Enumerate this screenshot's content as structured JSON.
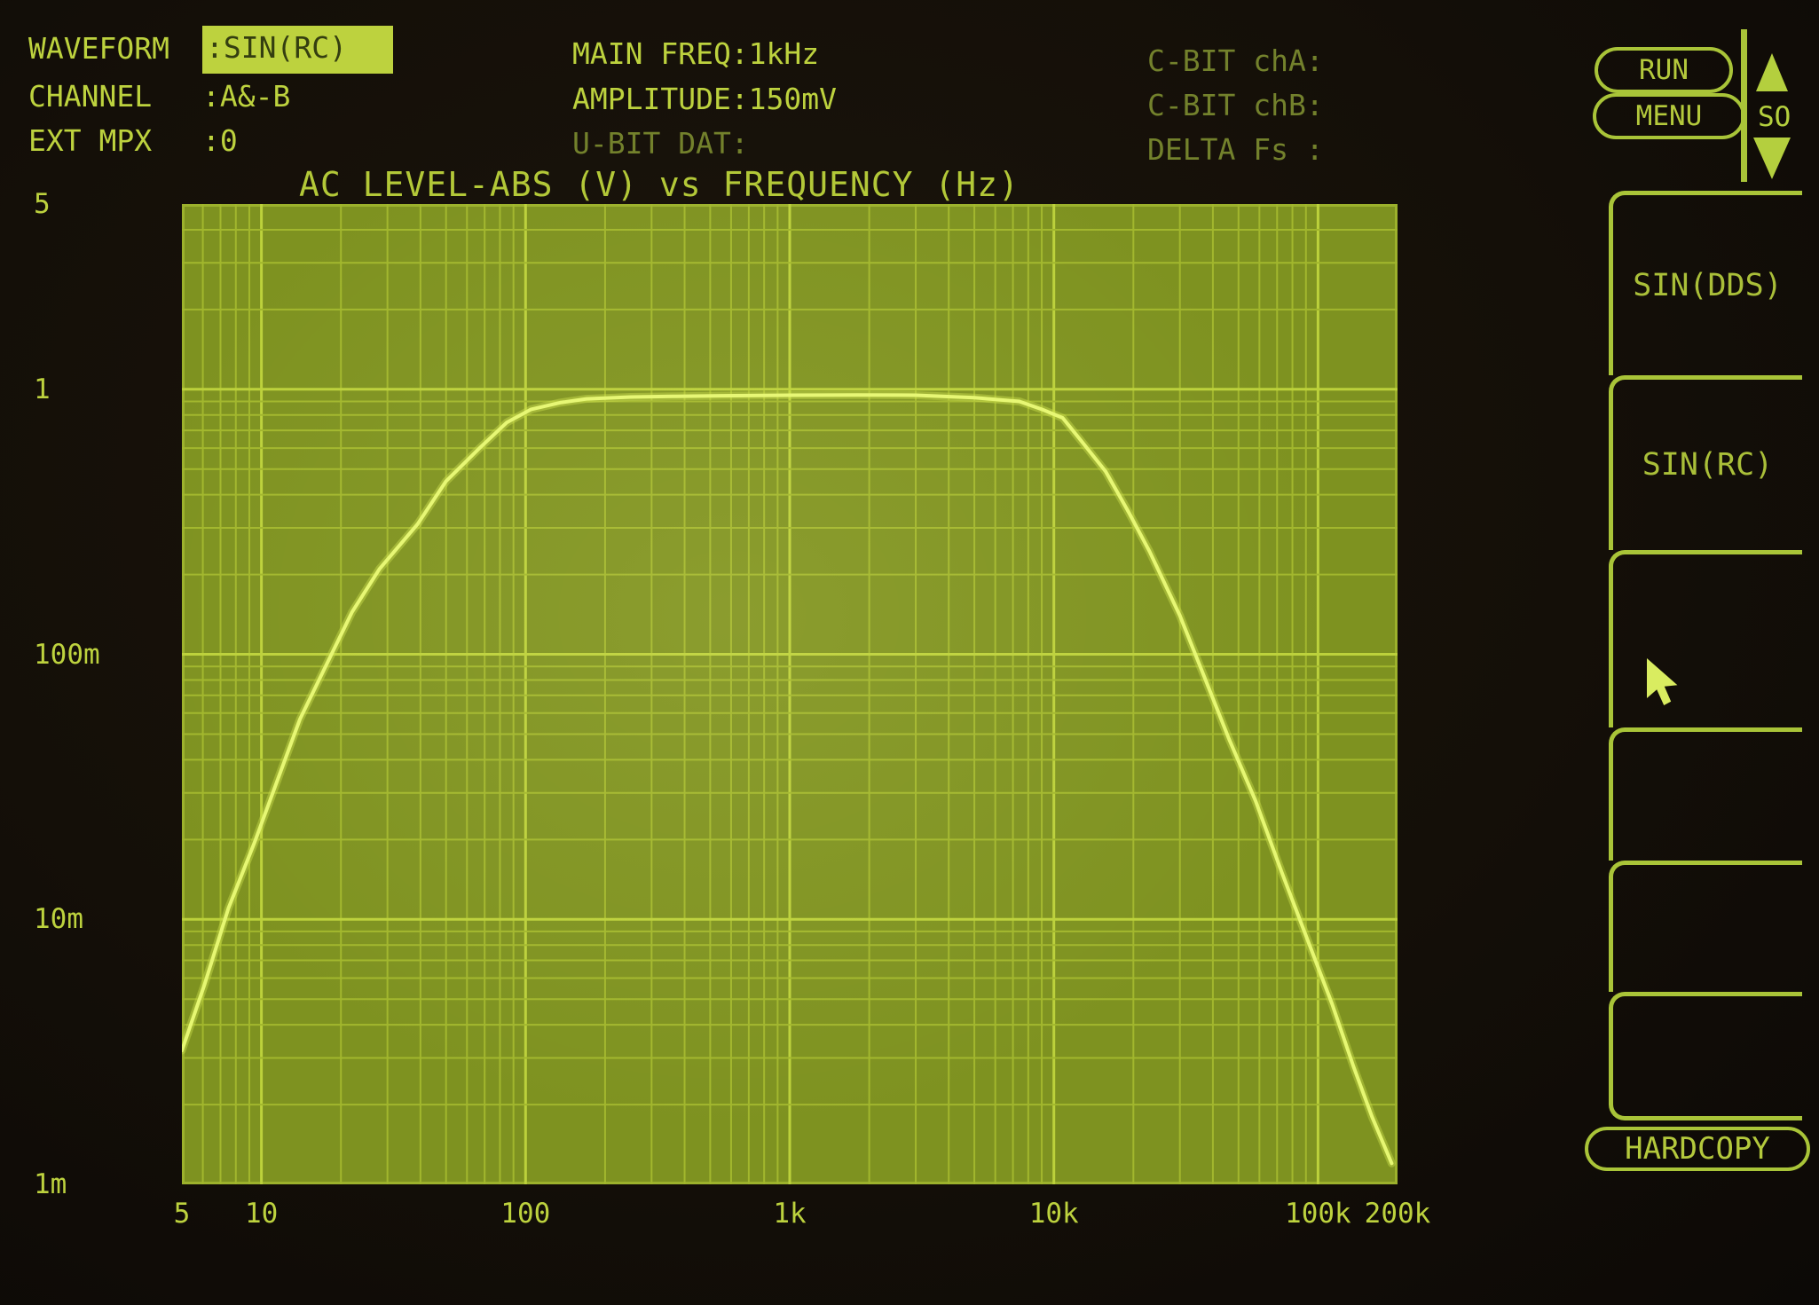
{
  "colors": {
    "screen_bg": "#120d07",
    "text_bright": "#bdd23e",
    "text_dim": "#73812c",
    "plot_fill": "#7e9220",
    "grid_minor": "#a2b72d",
    "grid_major": "#bcd13b",
    "trace": "#e6f772",
    "highlight_bg": "#bdd23e",
    "highlight_text": "#343e10"
  },
  "header": {
    "left": [
      {
        "label": "WAVEFORM",
        "value": ":SIN(RC)"
      },
      {
        "label": "CHANNEL",
        "value": ":A&-B"
      },
      {
        "label": "EXT MPX",
        "value": ":0"
      }
    ],
    "mid": [
      {
        "text": "MAIN FREQ:1kHz"
      },
      {
        "text": "AMPLITUDE:150mV"
      },
      {
        "text": "U-BIT DAT:"
      }
    ],
    "right": [
      {
        "text": "C-BIT chA:"
      },
      {
        "text": "C-BIT chB:"
      },
      {
        "text": "DELTA Fs :"
      }
    ]
  },
  "controls": {
    "run": "RUN",
    "menu": "MENU",
    "scroll_label": "SO"
  },
  "sidebar": {
    "keys": [
      {
        "label": "SIN(DDS)"
      },
      {
        "label": "SIN(RC)"
      },
      {
        "label": ""
      },
      {
        "label": ""
      },
      {
        "label": ""
      },
      {
        "label": ""
      }
    ],
    "hardcopy": "HARDCOPY"
  },
  "chart_data": {
    "type": "line",
    "title": "AC LEVEL-ABS (V) vs FREQUENCY (Hz)",
    "xlabel": "FREQUENCY (Hz)",
    "ylabel": "AC LEVEL-ABS (V)",
    "x_scale": "log",
    "y_scale": "log",
    "x_range": [
      5,
      200000
    ],
    "y_range": [
      0.001,
      5
    ],
    "grid": true,
    "legend": "none",
    "x_ticks": [
      {
        "v": 5,
        "label": "5"
      },
      {
        "v": 10,
        "label": "10"
      },
      {
        "v": 100,
        "label": "100"
      },
      {
        "v": 1000,
        "label": "1k"
      },
      {
        "v": 10000,
        "label": "10k"
      },
      {
        "v": 100000,
        "label": "100k"
      },
      {
        "v": 200000,
        "label": "200k"
      }
    ],
    "y_ticks": [
      {
        "v": 5,
        "label": "5"
      },
      {
        "v": 1,
        "label": "1"
      },
      {
        "v": 0.1,
        "label": "100m"
      },
      {
        "v": 0.01,
        "label": "10m"
      },
      {
        "v": 0.001,
        "label": "1m"
      }
    ],
    "series": [
      {
        "name": "AC LEVEL-ABS",
        "points": [
          [
            5,
            0.0032
          ],
          [
            6.1,
            0.0057
          ],
          [
            7.5,
            0.011
          ],
          [
            9.4,
            0.0194
          ],
          [
            14,
            0.057
          ],
          [
            22,
            0.144
          ],
          [
            28,
            0.21
          ],
          [
            39,
            0.31
          ],
          [
            50,
            0.45
          ],
          [
            67,
            0.6
          ],
          [
            85,
            0.75
          ],
          [
            105,
            0.84
          ],
          [
            135,
            0.89
          ],
          [
            170,
            0.92
          ],
          [
            250,
            0.935
          ],
          [
            360,
            0.94
          ],
          [
            550,
            0.945
          ],
          [
            1000,
            0.95
          ],
          [
            1800,
            0.952
          ],
          [
            3000,
            0.95
          ],
          [
            5000,
            0.93
          ],
          [
            7400,
            0.9
          ],
          [
            9000,
            0.84
          ],
          [
            10800,
            0.78
          ],
          [
            13000,
            0.62
          ],
          [
            15700,
            0.49
          ],
          [
            19000,
            0.35
          ],
          [
            23000,
            0.245
          ],
          [
            30000,
            0.14
          ],
          [
            37000,
            0.083
          ],
          [
            46000,
            0.048
          ],
          [
            58000,
            0.028
          ],
          [
            73000,
            0.015
          ],
          [
            92000,
            0.0082
          ],
          [
            113000,
            0.0048
          ],
          [
            136000,
            0.0028
          ],
          [
            160000,
            0.0018
          ],
          [
            190000,
            0.0012
          ]
        ]
      }
    ]
  }
}
